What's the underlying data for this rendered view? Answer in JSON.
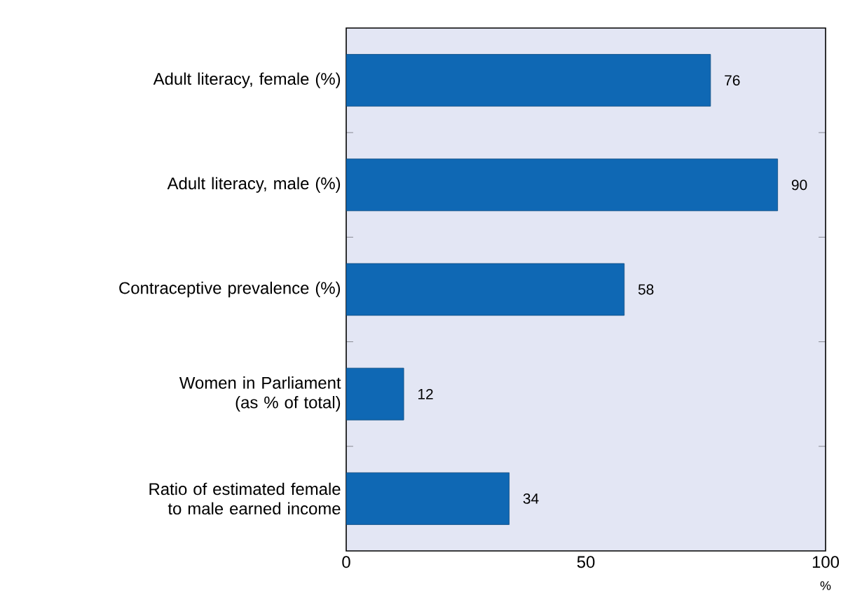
{
  "chart_data": {
    "type": "bar",
    "orientation": "horizontal",
    "categories": [
      "Adult literacy, female (%)",
      "Adult literacy, male (%)",
      "Contraceptive prevalence (%)",
      "Women in Parliament (as % of total)",
      "Ratio of estimated female to male earned income"
    ],
    "values": [
      76,
      90,
      58,
      12,
      34
    ],
    "color": "#0f68b4",
    "xlim": [
      0,
      100
    ],
    "xticks": [
      0,
      50,
      100
    ],
    "xlabel": "%",
    "data_labels": true
  }
}
